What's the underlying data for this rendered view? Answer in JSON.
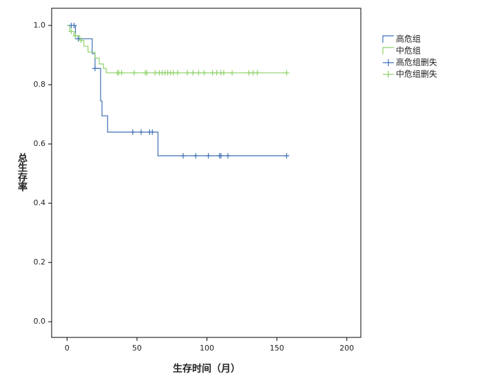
{
  "chart_data": {
    "type": "line",
    "x_label": "生存时间（月）",
    "y_label": "总生存率",
    "xlim": [
      -11,
      210
    ],
    "ylim": [
      -0.053,
      1.058
    ],
    "xticks": [
      0,
      50,
      100,
      150,
      200
    ],
    "yticks": [
      {
        "value": 0,
        "label": "0.0"
      },
      0.2,
      0.4,
      0.6,
      0.8,
      {
        "value": 1,
        "label": "1.0"
      }
    ],
    "legend": "right",
    "series": [
      {
        "name": "高危组",
        "color": "#3c6eb4",
        "mode": "step",
        "x": [
          0,
          6,
          6,
          18,
          18,
          20,
          20,
          24,
          24,
          25,
          25,
          29,
          29,
          65,
          65,
          157
        ],
        "values": [
          1,
          1,
          0.955,
          0.955,
          0.905,
          0.905,
          0.855,
          0.855,
          0.745,
          0.745,
          0.695,
          0.695,
          0.64,
          0.64,
          0.56,
          0.56
        ]
      },
      {
        "name": "中危组",
        "color": "#8fd16a",
        "mode": "step",
        "x": [
          0,
          2,
          2,
          5,
          5,
          9,
          9,
          12,
          12,
          15,
          15,
          20,
          20,
          23,
          23,
          26,
          26,
          28,
          28,
          157
        ],
        "values": [
          1,
          1,
          0.98,
          0.98,
          0.965,
          0.965,
          0.95,
          0.95,
          0.93,
          0.93,
          0.91,
          0.91,
          0.89,
          0.89,
          0.87,
          0.87,
          0.855,
          0.855,
          0.84,
          0.84
        ]
      },
      {
        "name": "高危组删失",
        "color": "#3c6eb4",
        "mode": "censor",
        "x": [
          3,
          5,
          8,
          20,
          47,
          53,
          59,
          61,
          83,
          92,
          101,
          109,
          110,
          115,
          157
        ],
        "values": [
          1,
          1,
          0.955,
          0.855,
          0.64,
          0.64,
          0.64,
          0.64,
          0.56,
          0.56,
          0.56,
          0.56,
          0.56,
          0.56,
          0.56
        ]
      },
      {
        "name": "中危组删失",
        "color": "#8fd16a",
        "mode": "censor",
        "x": [
          3,
          6,
          10,
          36,
          37,
          39,
          48,
          56,
          57,
          63,
          66,
          68,
          70,
          72,
          74,
          76,
          79,
          86,
          90,
          94,
          98,
          104,
          107,
          110,
          112,
          118,
          130,
          133,
          136,
          157
        ],
        "values": [
          0.98,
          0.965,
          0.95,
          0.84,
          0.84,
          0.84,
          0.84,
          0.84,
          0.84,
          0.84,
          0.84,
          0.84,
          0.84,
          0.84,
          0.84,
          0.84,
          0.84,
          0.84,
          0.84,
          0.84,
          0.84,
          0.84,
          0.84,
          0.84,
          0.84,
          0.84,
          0.84,
          0.84,
          0.84,
          0.84
        ]
      }
    ]
  }
}
